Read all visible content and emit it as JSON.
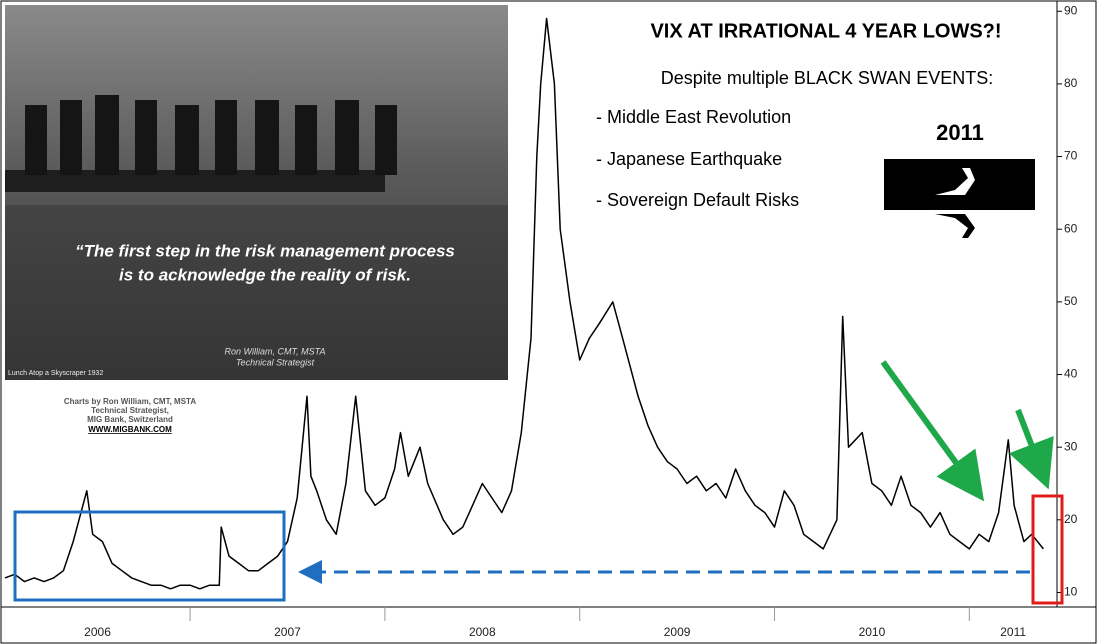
{
  "chart_data": {
    "type": "line",
    "color": "#000000",
    "x": [
      2006.05,
      2006.1,
      2006.15,
      2006.2,
      2006.25,
      2006.3,
      2006.35,
      2006.4,
      2006.45,
      2006.47,
      2006.5,
      2006.55,
      2006.6,
      2006.65,
      2006.7,
      2006.75,
      2006.8,
      2006.85,
      2006.9,
      2006.95,
      2007.0,
      2007.05,
      2007.1,
      2007.15,
      2007.16,
      2007.2,
      2007.25,
      2007.3,
      2007.35,
      2007.4,
      2007.45,
      2007.5,
      2007.55,
      2007.6,
      2007.62,
      2007.65,
      2007.7,
      2007.75,
      2007.8,
      2007.85,
      2007.9,
      2007.95,
      2008.0,
      2008.05,
      2008.08,
      2008.12,
      2008.18,
      2008.22,
      2008.3,
      2008.35,
      2008.4,
      2008.45,
      2008.5,
      2008.55,
      2008.6,
      2008.65,
      2008.7,
      2008.75,
      2008.78,
      2008.8,
      2008.83,
      2008.87,
      2008.9,
      2008.95,
      2009.0,
      2009.05,
      2009.1,
      2009.17,
      2009.22,
      2009.3,
      2009.35,
      2009.4,
      2009.45,
      2009.5,
      2009.55,
      2009.6,
      2009.65,
      2009.7,
      2009.75,
      2009.8,
      2009.85,
      2009.9,
      2009.95,
      2010.0,
      2010.05,
      2010.1,
      2010.15,
      2010.2,
      2010.25,
      2010.32,
      2010.35,
      2010.38,
      2010.45,
      2010.5,
      2010.55,
      2010.6,
      2010.65,
      2010.7,
      2010.75,
      2010.8,
      2010.85,
      2010.9,
      2010.95,
      2011.0,
      2011.05,
      2011.1,
      2011.15,
      2011.2,
      2011.23,
      2011.28,
      2011.32,
      2011.38
    ],
    "values": [
      12,
      12.5,
      11.5,
      12,
      11.5,
      12,
      13,
      17,
      22,
      24,
      18,
      17,
      14,
      13,
      12,
      11.5,
      11,
      11,
      10.5,
      11,
      11,
      10.5,
      11,
      11,
      19,
      15,
      14,
      13,
      13,
      14,
      15,
      17,
      23,
      37,
      26,
      24,
      20,
      18,
      25,
      37,
      24,
      22,
      23,
      27,
      32,
      26,
      30,
      25,
      20,
      18,
      19,
      22,
      25,
      23,
      21,
      24,
      32,
      45,
      70,
      80,
      89,
      80,
      60,
      50,
      42,
      45,
      47,
      50,
      45,
      37,
      33,
      30,
      28,
      27,
      25,
      26,
      24,
      25,
      23,
      27,
      24,
      22,
      21,
      19,
      24,
      22,
      18,
      17,
      16,
      20,
      48,
      30,
      32,
      25,
      24,
      22,
      26,
      22,
      21,
      19,
      21,
      18,
      17,
      16,
      18,
      17,
      21,
      31,
      22,
      17,
      18,
      16
    ],
    "xlim": [
      2006.05,
      2011.45
    ],
    "xticks": [
      2006,
      2007,
      2008,
      2009,
      2010,
      2011
    ],
    "ylim": [
      8,
      91
    ],
    "yticks": [
      10,
      20,
      30,
      40,
      50,
      60,
      70,
      80,
      90
    ],
    "annotations": {
      "headline": "VIX AT IRRATIONAL 4 YEAR LOWS?!",
      "subheading": "Despite multiple BLACK SWAN EVENTS:",
      "bullets": [
        "- Middle East Revolution",
        "- Japanese Earthquake",
        "- Sovereign Default Risks"
      ],
      "year_badge": "2011",
      "quote": [
        "“The first step in the risk management process",
        "is to acknowledge the reality of risk."
      ],
      "photo_signature": [
        "Ron William, CMT, MSTA",
        "Technical Strategist"
      ],
      "photo_caption": "Lunch Atop a Skyscraper 1932",
      "credit": [
        "Charts by Ron William, CMT, MSTA",
        "Technical Strategist,",
        "MIG Bank, Switzerland",
        "WWW.MIGBANK.COM"
      ]
    }
  }
}
